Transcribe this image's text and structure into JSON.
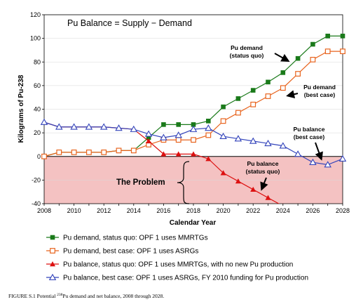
{
  "chart_data": {
    "type": "line",
    "title": "Pu Balance = Supply − Demand",
    "xlabel": "Calendar Year",
    "ylabel": "Kilograms of Pu-238",
    "xlim": [
      2008,
      2028
    ],
    "ylim": [
      -40,
      120
    ],
    "x_ticks": [
      2008,
      2010,
      2012,
      2014,
      2016,
      2018,
      2020,
      2022,
      2024,
      2026,
      2028
    ],
    "y_ticks": [
      -40,
      -20,
      0,
      20,
      40,
      60,
      80,
      100,
      120
    ],
    "negative_region_label": "The Problem",
    "negative_region_color": "#f4c2c2",
    "legend_position": "bottom",
    "series": [
      {
        "name": "Pu demand, status quo: OPF 1 uses MMRTGs",
        "color": "#1a7a1a",
        "marker": "filled-square",
        "x": [
          2008,
          2009,
          2010,
          2011,
          2012,
          2013,
          2014,
          2015,
          2016,
          2017,
          2018,
          2019,
          2020,
          2021,
          2022,
          2023,
          2024,
          2025,
          2026,
          2027,
          2028
        ],
        "y": [
          0,
          3.5,
          3.5,
          3.5,
          3.5,
          5,
          5,
          16,
          27,
          27,
          27,
          30,
          42,
          49,
          56,
          63,
          71,
          83,
          95,
          102,
          102
        ]
      },
      {
        "name": "Pu demand, best case: OPF 1 uses ASRGs",
        "color": "#e8641e",
        "marker": "open-square",
        "x": [
          2008,
          2009,
          2010,
          2011,
          2012,
          2013,
          2014,
          2015,
          2016,
          2017,
          2018,
          2019,
          2020,
          2021,
          2022,
          2023,
          2024,
          2025,
          2026,
          2027,
          2028
        ],
        "y": [
          0,
          3.5,
          3.5,
          3.5,
          3.5,
          5,
          5,
          10,
          14,
          14,
          14,
          18,
          30,
          37,
          44,
          51,
          58,
          70,
          82,
          89,
          89
        ]
      },
      {
        "name": "Pu balance, status quo: OPF 1 uses MMRTGs, with no new Pu production",
        "color": "#dd1111",
        "marker": "filled-triangle",
        "x": [
          2008,
          2009,
          2010,
          2011,
          2012,
          2013,
          2014,
          2015,
          2016,
          2017,
          2018,
          2019,
          2020,
          2021,
          2022,
          2023,
          2024
        ],
        "y": [
          29,
          25,
          25,
          25,
          25,
          24,
          23,
          13,
          2,
          2,
          2,
          -2,
          -14,
          -21,
          -28,
          -35,
          -42
        ]
      },
      {
        "name": "Pu balance, best case: OPF 1 uses ASRGs, FY 2010 funding for Pu production",
        "color": "#3344bb",
        "marker": "open-triangle",
        "x": [
          2008,
          2009,
          2010,
          2011,
          2012,
          2013,
          2014,
          2015,
          2016,
          2017,
          2018,
          2019,
          2020,
          2021,
          2022,
          2023,
          2024,
          2025,
          2026,
          2027,
          2028
        ],
        "y": [
          29,
          25,
          25,
          25,
          25,
          24,
          23,
          19,
          16,
          18,
          23,
          24,
          17,
          15,
          13,
          11,
          9,
          2,
          -5,
          -7,
          -2
        ]
      }
    ],
    "annotations": [
      {
        "lines": [
          "Pu demand",
          "(status quo)"
        ]
      },
      {
        "lines": [
          "Pu demand",
          "(best case)"
        ]
      },
      {
        "lines": [
          "Pu balance",
          "(best case)"
        ]
      },
      {
        "lines": [
          "Pu balance",
          "(status quo)"
        ]
      }
    ]
  },
  "caption": {
    "prefix": "FIGURE S.1  Potential ",
    "superscript": "238",
    "suffix": "Pu demand and net balance, 2008 through 2028."
  }
}
